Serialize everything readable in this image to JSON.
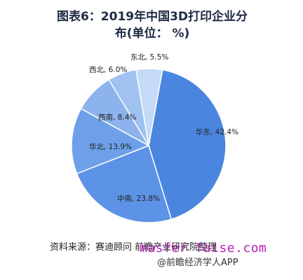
{
  "chart_data": {
    "type": "pie",
    "title_line1": "图表6：2019年中国3D打印企业分",
    "title_line2": "布(单位：  %)",
    "slices": [
      {
        "label": "华东",
        "value": 42.4,
        "color": "#4a86e0"
      },
      {
        "label": "中南",
        "value": 23.8,
        "color": "#5d93e6"
      },
      {
        "label": "华北",
        "value": 13.9,
        "color": "#6ea0ea"
      },
      {
        "label": "西南",
        "value": 8.4,
        "color": "#8cb3ee"
      },
      {
        "label": "西北",
        "value": 6.0,
        "color": "#9fc2f1"
      },
      {
        "label": "东北",
        "value": 5.5,
        "color": "#c4daf6"
      }
    ],
    "data_labels": [
      "华东, 42.4%",
      "中南, 23.8%",
      "华北, 13.9%",
      "西南, 8.4%",
      "西北, 6.0%",
      "东北, 5.5%"
    ]
  },
  "footer": {
    "source": "资料来源：赛迪顾问  前瞻产业研究院整理",
    "credit": "@前瞻经济学人APP",
    "overlay": "masfer faise.com"
  }
}
